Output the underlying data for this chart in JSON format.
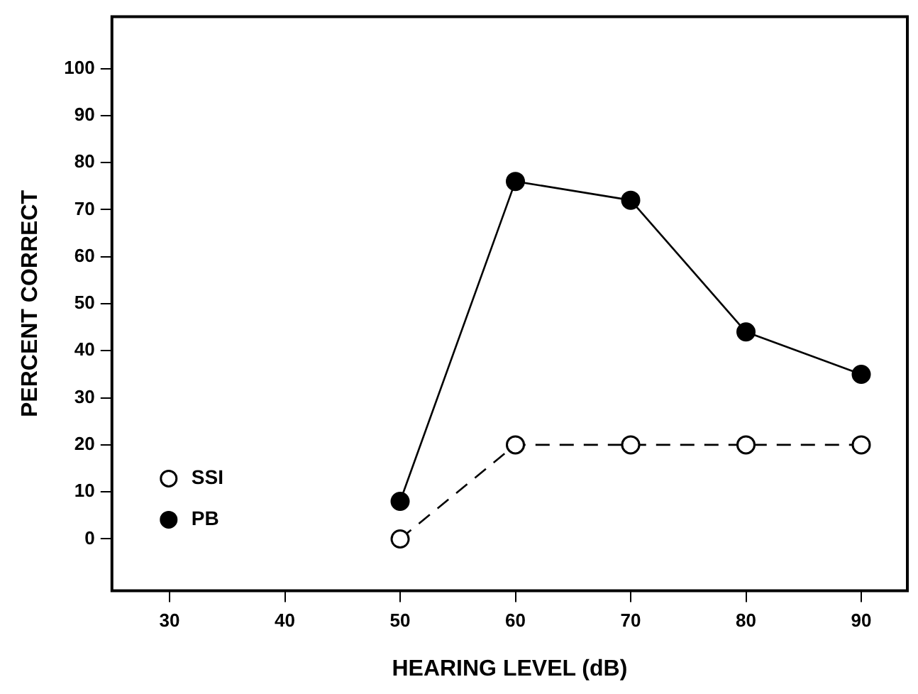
{
  "chart_data": {
    "type": "line",
    "xlabel": "HEARING LEVEL (dB)",
    "ylabel": "PERCENT CORRECT",
    "x": [
      50,
      60,
      70,
      80,
      90
    ],
    "series": [
      {
        "name": "SSI",
        "color": "#000000",
        "values": [
          0,
          20,
          20,
          20,
          20
        ],
        "line_style": "dashed"
      },
      {
        "name": "PB",
        "color": "#000000",
        "values": [
          8,
          76,
          72,
          44,
          35
        ],
        "line_style": "solid"
      }
    ],
    "xlim": [
      25,
      94
    ],
    "xticks": [
      30,
      40,
      50,
      60,
      70,
      80,
      90
    ],
    "ylim": [
      -11,
      111
    ],
    "yticks": [
      0,
      10,
      20,
      30,
      40,
      50,
      60,
      70,
      80,
      90,
      100
    ],
    "grid": false,
    "legend": "bottom left",
    "marker": "circle"
  }
}
